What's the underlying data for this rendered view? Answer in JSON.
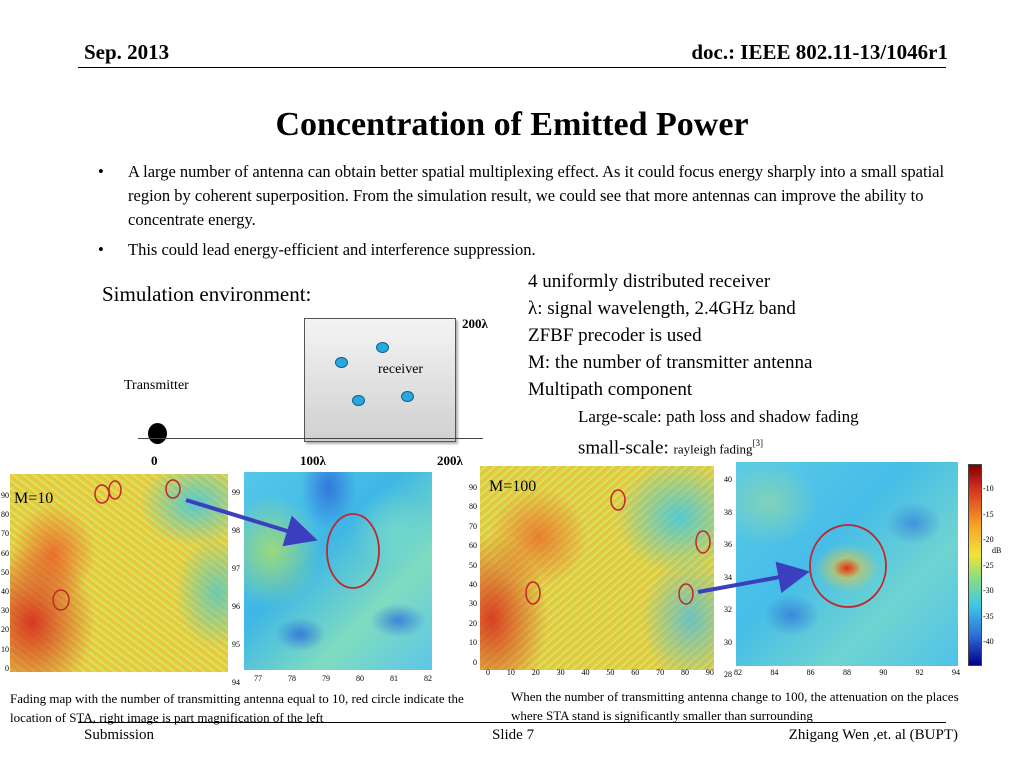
{
  "header": {
    "date": "Sep. 2013",
    "doc": "doc.: IEEE 802.11-13/1046r1"
  },
  "title": "Concentration of Emitted Power",
  "bullets": [
    "A large number of antenna can obtain better spatial multiplexing effect. As it could focus  energy sharply into a small spatial region by coherent superposition. From the simulation result, we could see that more antennas can improve the ability to concentrate energy.",
    "This could  lead energy-efficient and interference suppression."
  ],
  "bullet_glyph": "•",
  "sim_env_label": "Simulation environment:",
  "diagram": {
    "transmitter": "Transmitter",
    "receiver": "receiver",
    "tick_0": "0",
    "tick_100": "100λ",
    "tick_200": "200λ",
    "box_top": "200λ"
  },
  "info": {
    "line1": "4 uniformly distributed receiver",
    "line2": "λ: signal wavelength, 2.4GHz band",
    "line3": "ZFBF precoder is used",
    "line4": "M: the number of transmitter antenna",
    "line5": "Multipath component",
    "line6": "Large-scale: path loss and shadow fading",
    "line7_a": "small-scale: ",
    "line7_b": "rayleigh fading",
    "line7_ref": "[3]"
  },
  "figure_left": {
    "label": "M=10",
    "y_ticks_main": [
      "90",
      "80",
      "70",
      "60",
      "50",
      "40",
      "30",
      "20",
      "10",
      "0"
    ],
    "y_ticks_zoom": [
      "99",
      "98",
      "97",
      "96",
      "95",
      "94"
    ],
    "x_ticks_zoom": [
      "77",
      "78",
      "79",
      "80",
      "81",
      "82"
    ]
  },
  "figure_right": {
    "label": "M=100",
    "y_ticks_main": [
      "90",
      "80",
      "70",
      "60",
      "50",
      "40",
      "30",
      "20",
      "10",
      "0"
    ],
    "x_ticks_main": [
      "0",
      "10",
      "20",
      "30",
      "40",
      "50",
      "60",
      "70",
      "80",
      "90"
    ],
    "y_ticks_zoom": [
      "40",
      "38",
      "36",
      "34",
      "32",
      "30",
      "28"
    ],
    "x_ticks_zoom": [
      "82",
      "84",
      "86",
      "88",
      "90",
      "92",
      "94"
    ],
    "colorbar_ticks": [
      "-10",
      "-15",
      "-20",
      "-25",
      "-30",
      "-35",
      "-40"
    ],
    "colorbar_unit": "dB"
  },
  "captions": {
    "left": "Fading map with the number of transmitting antenna equal to 10, red circle indicate the location of STA,  right image is part magnification of the left",
    "right": "When the number of transmitting antenna  change to 100, the attenuation on the places where STA stand is significantly smaller than  surrounding"
  },
  "footer": {
    "left": "Submission",
    "center": "Slide 7",
    "right": "Zhigang Wen ,et. al (BUPT)"
  },
  "colors": {
    "heat_red": "#d7301f",
    "heat_yellow": "#f2e33a",
    "heat_cyan": "#3ec8e6",
    "heat_blue": "#2f6fd9",
    "arrow": "#3b3fbf",
    "circle": "#c0262d",
    "receiver_dot": "#29a8e0"
  }
}
